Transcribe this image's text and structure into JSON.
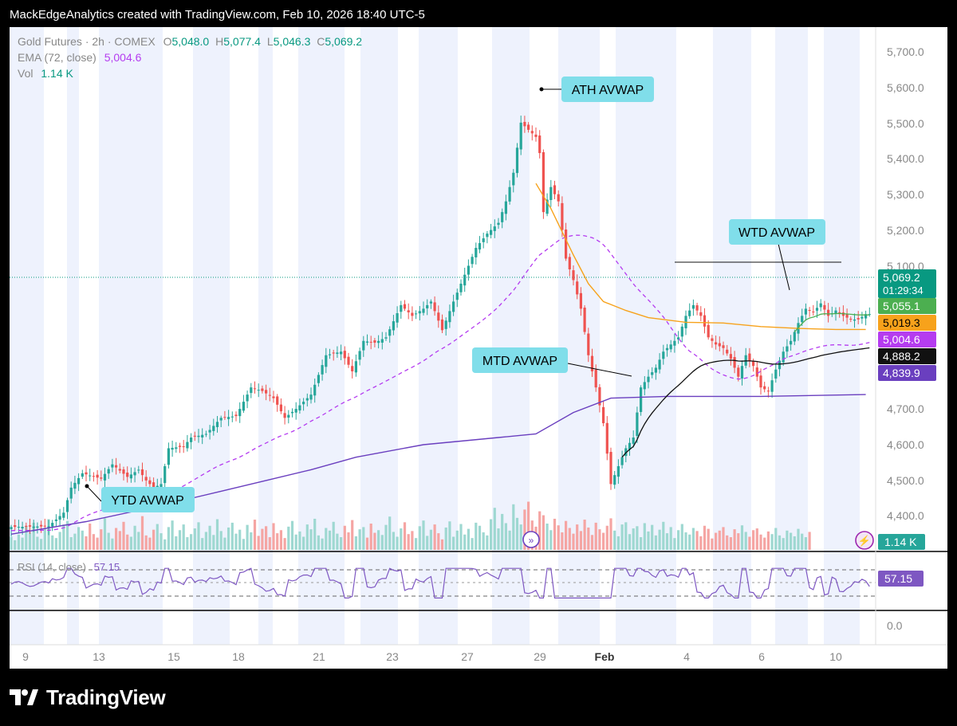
{
  "header": {
    "title": "MackEdgeAnalytics created with TradingView.com, Feb 10, 2026 18:40 UTC-5"
  },
  "legend": {
    "symbol": "Gold Futures · 2h · COMEX",
    "o_label": "O",
    "o_value": "5,048.0",
    "h_label": "H",
    "h_value": "5,077.4",
    "l_label": "L",
    "l_value": "5,046.3",
    "c_label": "C",
    "c_value": "5,069.2",
    "ema_label": "EMA (72, close)",
    "ema_value": "5,004.6",
    "vol_label": "Vol",
    "vol_value": "1.14 K",
    "rsi_label": "RSI (14, close)",
    "rsi_value": "57.15"
  },
  "annotations": {
    "ath": "ATH AVWAP",
    "wtd": "WTD AVWAP",
    "mtd": "MTD AVWAP",
    "ytd": "YTD AVWAP"
  },
  "badges": [
    {
      "value": "5,069.2",
      "sub": "01:29:34",
      "color": "#089981",
      "text_color": "#ffffff"
    },
    {
      "value": "5,055.1",
      "color": "#4caf50",
      "text_color": "#ffffff"
    },
    {
      "value": "5,019.3",
      "color": "#f7a21b",
      "text_color": "#000000"
    },
    {
      "value": "5,004.6",
      "color": "#b53cf0",
      "text_color": "#ffffff"
    },
    {
      "value": "4,888.2",
      "color": "#111111",
      "text_color": "#ffffff"
    },
    {
      "value": "4,839.9",
      "color": "#6a3fbf",
      "text_color": "#ffffff"
    }
  ],
  "vol_badge": {
    "value": "1.14 K",
    "color": "#26a69a"
  },
  "rsi_badge": {
    "value": "57.15",
    "color": "#7e57c2"
  },
  "footer": {
    "brand": "TradingView"
  },
  "colors": {
    "up": "#26a69a",
    "down": "#ef5350",
    "ema": "#f7a21b",
    "mtd": "#111111",
    "ytd": "#6a3fbf",
    "ath": "#b53cf0",
    "wtd": "#4caf50",
    "rsi": "#7e57c2",
    "session": "#eef2fd"
  },
  "chart_data": {
    "type": "candlestick",
    "y_ticks": [
      "5,700.0",
      "5,600.0",
      "5,500.0",
      "5,400.0",
      "5,300.0",
      "5,200.0",
      "5,100.0",
      "4,700.0",
      "4,600.0",
      "4,500.0",
      "4,400.0"
    ],
    "rsi_ticks": [
      "0.0"
    ],
    "x_ticks": [
      "9",
      "13",
      "15",
      "18",
      "21",
      "23",
      "27",
      "29",
      "Feb",
      "4",
      "6",
      "10"
    ],
    "ylim": [
      4350,
      5750
    ],
    "path": [
      [
        0,
        4470
      ],
      [
        10,
        4472
      ],
      [
        14,
        4510
      ],
      [
        16,
        4580
      ],
      [
        19,
        4620
      ],
      [
        24,
        4605
      ],
      [
        27,
        4645
      ],
      [
        31,
        4610
      ],
      [
        34,
        4630
      ],
      [
        36,
        4600
      ],
      [
        38,
        4580
      ],
      [
        40,
        4590
      ],
      [
        42,
        4690
      ],
      [
        46,
        4695
      ],
      [
        48,
        4720
      ],
      [
        52,
        4730
      ],
      [
        56,
        4775
      ],
      [
        60,
        4780
      ],
      [
        64,
        4860
      ],
      [
        67,
        4850
      ],
      [
        70,
        4830
      ],
      [
        73,
        4775
      ],
      [
        76,
        4800
      ],
      [
        80,
        4840
      ],
      [
        84,
        4950
      ],
      [
        88,
        4960
      ],
      [
        91,
        4905
      ],
      [
        94,
        4990
      ],
      [
        97,
        4985
      ],
      [
        100,
        5000
      ],
      [
        104,
        5090
      ],
      [
        107,
        5060
      ],
      [
        110,
        5080
      ],
      [
        112,
        5100
      ],
      [
        115,
        5020
      ],
      [
        118,
        5100
      ],
      [
        121,
        5175
      ],
      [
        124,
        5250
      ],
      [
        127,
        5290
      ],
      [
        130,
        5320
      ],
      [
        132,
        5380
      ],
      [
        134,
        5460
      ],
      [
        136,
        5600
      ],
      [
        138,
        5580
      ],
      [
        140,
        5560
      ],
      [
        141,
        5515
      ],
      [
        142,
        5350
      ],
      [
        144,
        5420
      ],
      [
        146,
        5380
      ],
      [
        148,
        5220
      ],
      [
        150,
        5160
      ],
      [
        152,
        5080
      ],
      [
        154,
        4950
      ],
      [
        156,
        4860
      ],
      [
        158,
        4760
      ],
      [
        160,
        4590
      ],
      [
        162,
        4640
      ],
      [
        164,
        4690
      ],
      [
        166,
        4720
      ],
      [
        168,
        4860
      ],
      [
        170,
        4890
      ],
      [
        172,
        4915
      ],
      [
        174,
        4960
      ],
      [
        176,
        4980
      ],
      [
        178,
        5000
      ],
      [
        180,
        5060
      ],
      [
        182,
        5090
      ],
      [
        184,
        5060
      ],
      [
        186,
        5000
      ],
      [
        188,
        4980
      ],
      [
        190,
        4970
      ],
      [
        192,
        4940
      ],
      [
        194,
        4890
      ],
      [
        196,
        4950
      ],
      [
        198,
        4920
      ],
      [
        200,
        4860
      ],
      [
        202,
        4850
      ],
      [
        204,
        4910
      ],
      [
        206,
        4960
      ],
      [
        208,
        4990
      ],
      [
        210,
        5040
      ],
      [
        212,
        5080
      ],
      [
        214,
        5070
      ],
      [
        216,
        5095
      ],
      [
        218,
        5060
      ],
      [
        220,
        5075
      ],
      [
        222,
        5060
      ],
      [
        224,
        5050
      ],
      [
        226,
        5050
      ],
      [
        228,
        5065
      ]
    ],
    "series": [
      {
        "name": "EMA (72, close)",
        "values": [
          [
            140,
            5430
          ],
          [
            144,
            5360
          ],
          [
            150,
            5230
          ],
          [
            154,
            5150
          ],
          [
            158,
            5100
          ],
          [
            164,
            5075
          ],
          [
            170,
            5055
          ],
          [
            180,
            5042
          ],
          [
            190,
            5040
          ],
          [
            200,
            5030
          ],
          [
            210,
            5025
          ],
          [
            220,
            5022
          ],
          [
            228,
            5022
          ]
        ]
      },
      {
        "name": "YTD AVWAP",
        "values": [
          [
            0,
            4450
          ],
          [
            20,
            4485
          ],
          [
            40,
            4530
          ],
          [
            56,
            4570
          ],
          [
            70,
            4605
          ],
          [
            80,
            4630
          ],
          [
            92,
            4665
          ],
          [
            110,
            4700
          ],
          [
            130,
            4720
          ],
          [
            140,
            4730
          ],
          [
            150,
            4790
          ],
          [
            160,
            4830
          ],
          [
            175,
            4835
          ],
          [
            200,
            4835
          ],
          [
            228,
            4840
          ]
        ]
      }
    ],
    "volume": [
      30,
      22,
      35,
      28,
      55,
      40,
      62,
      30,
      25,
      48,
      70,
      33,
      27,
      41,
      58,
      66,
      29,
      37,
      52,
      44,
      31,
      60,
      36,
      28,
      47,
      72,
      39,
      26,
      50,
      43,
      64,
      35,
      30,
      55,
      41,
      77,
      33,
      28,
      46,
      59,
      38,
      24,
      52,
      67,
      31,
      45,
      58,
      29,
      36,
      49,
      63,
      27,
      41,
      55,
      34,
      70,
      43,
      28,
      51,
      62,
      37,
      46,
      25,
      57,
      40,
      69,
      32,
      48,
      54,
      29,
      61,
      38,
      45,
      27,
      53,
      66,
      35,
      42,
      30,
      58,
      47,
      71,
      33,
      26,
      50,
      44,
      64,
      37,
      29,
      55,
      40,
      68,
      31,
      47,
      52,
      28,
      60,
      39,
      45,
      34,
      57,
      76,
      41,
      30,
      49,
      63,
      36,
      43,
      27,
      54,
      67,
      32,
      46,
      58,
      38,
      24,
      51,
      65,
      30,
      44,
      59,
      35,
      48,
      27,
      62,
      55,
      40,
      33,
      70,
      96,
      49,
      82,
      61,
      44,
      104,
      73,
      58,
      92,
      110,
      67,
      53,
      88,
      79,
      60,
      45,
      71,
      56,
      40,
      66,
      50,
      37,
      58,
      43,
      69,
      51,
      34,
      62,
      47,
      39,
      55,
      72,
      44,
      31,
      58,
      63,
      36,
      49,
      54,
      29,
      61,
      42,
      57,
      33,
      46,
      64,
      38,
      52,
      27,
      45,
      59,
      40,
      35,
      50,
      43,
      31,
      55,
      48,
      26,
      39,
      44,
      52,
      33,
      29,
      47,
      38,
      56,
      41,
      30,
      45,
      49,
      35,
      28,
      42,
      36,
      50,
      33,
      27,
      44,
      39,
      31,
      48,
      37,
      29,
      41
    ]
  }
}
